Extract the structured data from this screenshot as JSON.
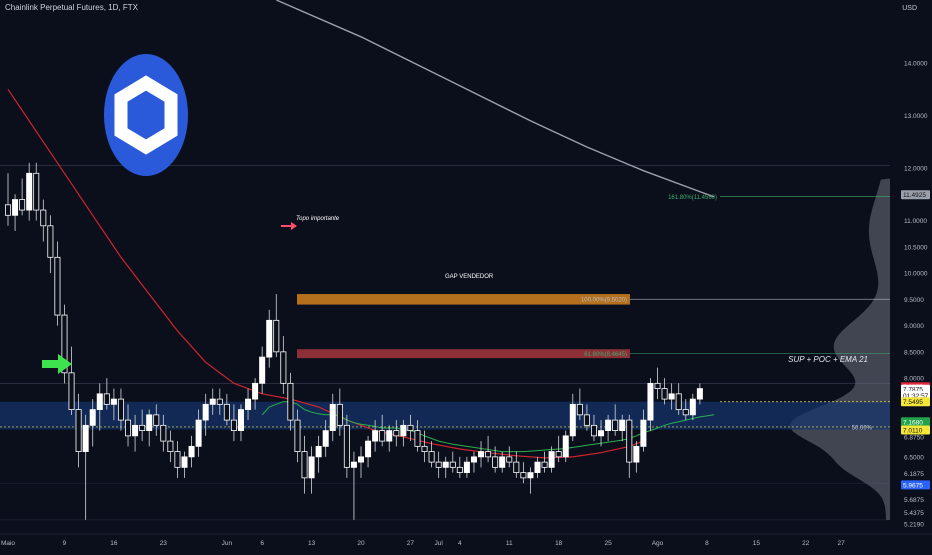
{
  "chart_title": "Chainlink Perpetual Futures, 1D, FTX",
  "currency": "USD",
  "chart_data": {
    "type": "candlestick",
    "title": "Chainlink Perpetual Futures, 1D, FTX",
    "ylim": [
      5.05,
      15.2
    ],
    "y_axis_ticks": [
      "14.0000",
      "13.0000",
      "12.0000",
      "11.5000",
      "11.0000",
      "10.5000",
      "10.0000",
      "9.5000",
      "9.0000",
      "8.5000",
      "8.0000",
      "7.5600",
      "6.8750",
      "6.5000",
      "6.1875",
      "5.6875",
      "5.4375",
      "5.2190"
    ],
    "x_axis_ticks": [
      {
        "label": "Maio",
        "day": 0
      },
      {
        "label": "9",
        "day": 8
      },
      {
        "label": "16",
        "day": 15
      },
      {
        "label": "23",
        "day": 22
      },
      {
        "label": "Jun",
        "day": 31
      },
      {
        "label": "6",
        "day": 36
      },
      {
        "label": "13",
        "day": 43
      },
      {
        "label": "20",
        "day": 50
      },
      {
        "label": "27",
        "day": 57
      },
      {
        "label": "Jul",
        "day": 61
      },
      {
        "label": "4",
        "day": 64
      },
      {
        "label": "11",
        "day": 71
      },
      {
        "label": "18",
        "day": 78
      },
      {
        "label": "25",
        "day": 85
      },
      {
        "label": "Ago",
        "day": 92
      },
      {
        "label": "8",
        "day": 99
      },
      {
        "label": "15",
        "day": 106
      },
      {
        "label": "22",
        "day": 113
      },
      {
        "label": "27",
        "day": 118
      }
    ],
    "candles_ohlc": [
      [
        11.3,
        11.9,
        10.9,
        11.1
      ],
      [
        11.1,
        11.5,
        10.8,
        11.4
      ],
      [
        11.4,
        11.8,
        11.1,
        11.2
      ],
      [
        11.2,
        12.1,
        11.0,
        11.9
      ],
      [
        11.9,
        12.1,
        11.0,
        11.2
      ],
      [
        11.2,
        11.4,
        10.6,
        10.9
      ],
      [
        10.9,
        11.1,
        10.0,
        10.3
      ],
      [
        10.3,
        10.6,
        9.0,
        9.2
      ],
      [
        9.2,
        9.4,
        7.9,
        8.1
      ],
      [
        8.1,
        8.6,
        7.3,
        7.4
      ],
      [
        7.4,
        7.7,
        6.3,
        6.6
      ],
      [
        6.6,
        7.3,
        5.3,
        7.1
      ],
      [
        7.1,
        7.6,
        6.7,
        7.4
      ],
      [
        7.4,
        7.9,
        7.0,
        7.7
      ],
      [
        7.7,
        8.0,
        7.4,
        7.5
      ],
      [
        7.5,
        7.8,
        7.2,
        7.6
      ],
      [
        7.6,
        7.8,
        7.0,
        7.2
      ],
      [
        7.2,
        7.5,
        6.7,
        6.9
      ],
      [
        6.9,
        7.3,
        6.6,
        7.1
      ],
      [
        7.1,
        7.4,
        6.8,
        7.0
      ],
      [
        7.0,
        7.4,
        6.7,
        7.3
      ],
      [
        7.3,
        7.5,
        6.9,
        7.1
      ],
      [
        7.1,
        7.3,
        6.6,
        6.8
      ],
      [
        6.8,
        7.0,
        6.4,
        6.6
      ],
      [
        6.6,
        6.8,
        6.1,
        6.3
      ],
      [
        6.3,
        6.6,
        6.1,
        6.5
      ],
      [
        6.5,
        6.9,
        6.3,
        6.7
      ],
      [
        6.7,
        7.4,
        6.5,
        7.2
      ],
      [
        7.2,
        7.7,
        6.9,
        7.5
      ],
      [
        7.5,
        7.8,
        7.3,
        7.6
      ],
      [
        7.6,
        7.8,
        7.3,
        7.5
      ],
      [
        7.5,
        7.7,
        7.1,
        7.2
      ],
      [
        7.2,
        7.5,
        6.8,
        7.0
      ],
      [
        7.0,
        7.5,
        6.8,
        7.4
      ],
      [
        7.4,
        7.8,
        7.2,
        7.6
      ],
      [
        7.6,
        8.0,
        7.4,
        7.9
      ],
      [
        7.9,
        8.6,
        7.7,
        8.4
      ],
      [
        8.4,
        9.3,
        8.2,
        9.1
      ],
      [
        9.1,
        9.6,
        8.4,
        8.5
      ],
      [
        8.5,
        8.8,
        7.7,
        7.9
      ],
      [
        7.9,
        8.1,
        7.0,
        7.2
      ],
      [
        7.2,
        7.4,
        6.4,
        6.6
      ],
      [
        6.6,
        6.9,
        5.8,
        6.1
      ],
      [
        6.1,
        6.7,
        5.8,
        6.5
      ],
      [
        6.5,
        6.9,
        6.2,
        6.7
      ],
      [
        6.7,
        7.2,
        6.5,
        7.0
      ],
      [
        7.0,
        7.7,
        6.8,
        7.5
      ],
      [
        7.5,
        7.8,
        6.9,
        7.1
      ],
      [
        7.1,
        7.3,
        6.1,
        6.3
      ],
      [
        6.3,
        6.6,
        5.3,
        6.4
      ],
      [
        6.4,
        6.7,
        6.1,
        6.5
      ],
      [
        6.5,
        6.9,
        6.3,
        6.8
      ],
      [
        6.8,
        7.2,
        6.6,
        7.0
      ],
      [
        7.0,
        7.3,
        6.7,
        6.8
      ],
      [
        6.8,
        7.1,
        6.6,
        7.0
      ],
      [
        7.0,
        7.2,
        6.7,
        6.9
      ],
      [
        6.9,
        7.2,
        6.7,
        7.1
      ],
      [
        7.1,
        7.3,
        6.8,
        7.0
      ],
      [
        7.0,
        7.2,
        6.6,
        6.7
      ],
      [
        6.7,
        7.0,
        6.4,
        6.6
      ],
      [
        6.6,
        6.8,
        6.3,
        6.4
      ],
      [
        6.4,
        6.6,
        6.1,
        6.3
      ],
      [
        6.3,
        6.5,
        6.1,
        6.4
      ],
      [
        6.4,
        6.6,
        6.2,
        6.3
      ],
      [
        6.3,
        6.5,
        6.1,
        6.2
      ],
      [
        6.2,
        6.5,
        6.1,
        6.4
      ],
      [
        6.4,
        6.6,
        6.2,
        6.5
      ],
      [
        6.5,
        6.8,
        6.3,
        6.6
      ],
      [
        6.6,
        6.9,
        6.4,
        6.5
      ],
      [
        6.5,
        6.7,
        6.2,
        6.3
      ],
      [
        6.3,
        6.6,
        6.2,
        6.5
      ],
      [
        6.5,
        6.7,
        6.3,
        6.4
      ],
      [
        6.4,
        6.6,
        6.1,
        6.2
      ],
      [
        6.2,
        6.4,
        6.0,
        6.1
      ],
      [
        6.1,
        6.3,
        5.8,
        6.2
      ],
      [
        6.2,
        6.5,
        6.1,
        6.4
      ],
      [
        6.4,
        6.6,
        6.2,
        6.3
      ],
      [
        6.3,
        6.7,
        6.2,
        6.6
      ],
      [
        6.6,
        6.9,
        6.4,
        6.5
      ],
      [
        6.5,
        7.0,
        6.4,
        6.9
      ],
      [
        6.9,
        7.7,
        6.8,
        7.5
      ],
      [
        7.5,
        7.8,
        7.2,
        7.3
      ],
      [
        7.3,
        7.5,
        7.0,
        7.1
      ],
      [
        7.1,
        7.3,
        6.8,
        6.9
      ],
      [
        6.9,
        7.2,
        6.7,
        7.0
      ],
      [
        7.0,
        7.3,
        6.8,
        7.2
      ],
      [
        7.2,
        7.5,
        6.9,
        7.0
      ],
      [
        7.0,
        7.3,
        6.8,
        7.2
      ],
      [
        7.2,
        7.3,
        6.1,
        6.4
      ],
      [
        6.4,
        6.8,
        6.2,
        6.7
      ],
      [
        6.7,
        7.4,
        6.6,
        7.2
      ],
      [
        7.2,
        8.0,
        7.0,
        7.9
      ],
      [
        7.9,
        8.2,
        7.6,
        7.8
      ],
      [
        7.8,
        8.0,
        7.5,
        7.6
      ],
      [
        7.6,
        7.9,
        7.4,
        7.7
      ],
      [
        7.7,
        7.9,
        7.3,
        7.4
      ],
      [
        7.4,
        7.6,
        7.2,
        7.3
      ],
      [
        7.3,
        7.7,
        7.2,
        7.6
      ],
      [
        7.6,
        7.9,
        7.5,
        7.8
      ]
    ],
    "ema21_start_index": 36,
    "ema21": [
      7.3,
      7.45,
      7.5,
      7.55,
      7.55,
      7.5,
      7.4,
      7.35,
      7.32,
      7.3,
      7.3,
      7.28,
      7.2,
      7.15,
      7.12,
      7.1,
      7.08,
      7.05,
      7.05,
      7.05,
      7.02,
      7.0,
      6.96,
      6.9,
      6.85,
      6.8,
      6.77,
      6.74,
      6.72,
      6.7,
      6.68,
      6.66,
      6.64,
      6.62,
      6.6,
      6.6,
      6.6,
      6.6,
      6.61,
      6.62,
      6.63,
      6.64,
      6.65,
      6.66,
      6.68,
      6.7,
      6.72,
      6.74,
      6.76,
      6.78,
      6.8,
      6.82,
      6.85,
      6.9,
      6.96,
      7.0,
      7.05,
      7.1,
      7.14,
      7.17,
      7.2,
      7.23,
      7.26,
      7.28,
      7.3
    ],
    "ema_red": [
      [
        0,
        13.5
      ],
      [
        4,
        12.7
      ],
      [
        8,
        11.9
      ],
      [
        12,
        11.1
      ],
      [
        16,
        10.3
      ],
      [
        20,
        9.6
      ],
      [
        24,
        8.9
      ],
      [
        28,
        8.3
      ],
      [
        32,
        7.9
      ],
      [
        36,
        7.7
      ],
      [
        40,
        7.6
      ],
      [
        44,
        7.45
      ],
      [
        48,
        7.2
      ],
      [
        52,
        7.0
      ],
      [
        56,
        6.88
      ],
      [
        60,
        6.75
      ],
      [
        64,
        6.65
      ],
      [
        68,
        6.58
      ],
      [
        72,
        6.52
      ],
      [
        76,
        6.48
      ],
      [
        80,
        6.5
      ],
      [
        84,
        6.58
      ],
      [
        88,
        6.7
      ],
      [
        90,
        6.8
      ]
    ],
    "sma_gray": [
      [
        38,
        15.2
      ],
      [
        50,
        14.5
      ],
      [
        62,
        13.7
      ],
      [
        74,
        12.9
      ],
      [
        82,
        12.4
      ],
      [
        90,
        11.95
      ],
      [
        100,
        11.45
      ]
    ],
    "levels": [
      {
        "label": "161.80%(11.4560)",
        "value": 11.456,
        "color": "#3fae6a"
      },
      {
        "label": "100.00%(9.5020)",
        "value": 9.502,
        "color": "#b8bcc6"
      },
      {
        "label": "61.80%(8.4645)",
        "value": 8.4645,
        "color": "#3fae6a"
      },
      {
        "label": "50.00%",
        "value": 7.07,
        "color": "#c9ccd6"
      }
    ],
    "annotations": {
      "topo": "Topo importante",
      "gap": "GAP VENDEDOR",
      "sup": "SUP + POC + EMA 21"
    },
    "price_badges": [
      {
        "text": "11.4925",
        "value": 11.4925,
        "bg": "#9aa0ab",
        "fg": "#111"
      },
      {
        "text": "7.8355",
        "value": 7.8355,
        "bg": "#e0293a",
        "fg": "#ffffff"
      },
      {
        "text": "7.7875",
        "value": 7.7875,
        "bg": "#ffffff",
        "fg": "#111"
      },
      {
        "text": "01:32:57",
        "value": 7.67,
        "bg": "#ffffff",
        "fg": "#111"
      },
      {
        "text": "7.5495",
        "value": 7.5495,
        "bg": "#f5e63a",
        "fg": "#111"
      },
      {
        "text": "7.1680",
        "value": 7.168,
        "bg": "#22a34a",
        "fg": "#ffffff"
      },
      {
        "text": "7.0110",
        "value": 7.011,
        "bg": "#f5e63a",
        "fg": "#111"
      },
      {
        "text": "5.9675",
        "value": 5.9675,
        "bg": "#2962ff",
        "fg": "#ffffff"
      }
    ]
  },
  "colors": {
    "background": "#0b0f1c",
    "ema_red": "#d0242e",
    "ema_green": "#2bb24c",
    "support_zone": "#16336e",
    "gap_zone": "#8e2f37",
    "top_zone": "#b5701d",
    "logo": "#2a5ada",
    "green_arrow": "#3ee24f",
    "pink_arrow": "#ff4d6a"
  },
  "icons": {
    "logo": "chainlink-logo",
    "pointer_left": "green-arrow-icon",
    "pointer_top": "pink-arrow-icon"
  }
}
